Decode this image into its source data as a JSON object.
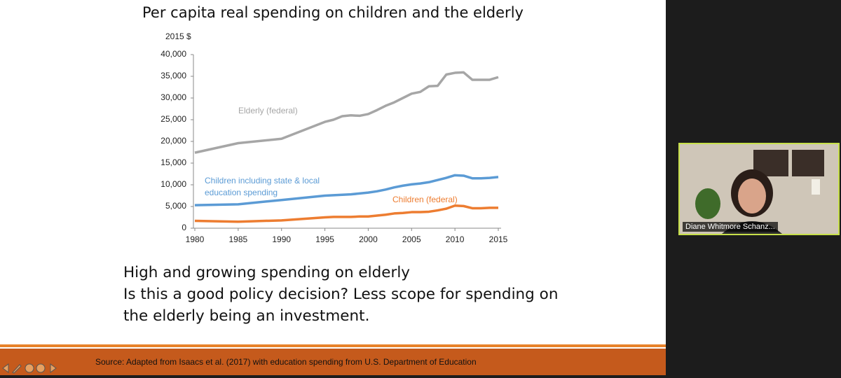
{
  "slide": {
    "title": "Per capita real spending on children and the elderly",
    "body": [
      "High and growing spending on elderly",
      "Is this a good policy decision? Less scope for spending on",
      "the elderly being an investment."
    ],
    "source": "Source: Adapted from Isaacs et al. (2017) with education spending from U.S. Department of Education"
  },
  "chart_data": {
    "type": "line",
    "y_label": "2015 $",
    "x": [
      1980,
      1985,
      1990,
      1995,
      1996,
      1997,
      1998,
      1999,
      2000,
      2001,
      2002,
      2003,
      2004,
      2005,
      2006,
      2007,
      2008,
      2009,
      2010,
      2011,
      2012,
      2013,
      2014,
      2015
    ],
    "series": [
      {
        "name": "Elderly (federal)",
        "color": "#a6a6a6",
        "values": [
          17400,
          19600,
          20600,
          24500,
          25000,
          25800,
          26000,
          25900,
          26300,
          27200,
          28200,
          29000,
          30000,
          31000,
          31400,
          32700,
          32800,
          35400,
          35800,
          35900,
          34200,
          34200,
          34200,
          34800
        ]
      },
      {
        "name": "Children including state & local education spending",
        "color": "#5b9bd5",
        "values": [
          5300,
          5500,
          6500,
          7500,
          7600,
          7700,
          7800,
          8000,
          8200,
          8500,
          8900,
          9400,
          9800,
          10100,
          10300,
          10600,
          11100,
          11600,
          12200,
          12100,
          11500,
          11500,
          11600,
          11800
        ]
      },
      {
        "name": "Children (federal)",
        "color": "#ed7d31",
        "values": [
          1700,
          1500,
          1800,
          2500,
          2600,
          2600,
          2600,
          2700,
          2700,
          2900,
          3100,
          3400,
          3500,
          3700,
          3700,
          3800,
          4100,
          4500,
          5200,
          5100,
          4600,
          4600,
          4700,
          4700
        ]
      }
    ],
    "xlim": [
      1980,
      2015
    ],
    "xticks": [
      1980,
      1985,
      1990,
      1995,
      2000,
      2005,
      2010,
      2015
    ],
    "ylim": [
      0,
      40000
    ],
    "yticks": [
      0,
      {
        "value": 5000,
        "label": "5,000"
      },
      {
        "value": 10000,
        "label": "10,000"
      },
      {
        "value": 15000,
        "label": "15,000"
      },
      {
        "value": 20000,
        "label": "20,000"
      },
      {
        "value": 25000,
        "label": "25,000"
      },
      {
        "value": 30000,
        "label": "30,000"
      },
      {
        "value": 35000,
        "label": "35,000"
      },
      {
        "value": 40000,
        "label": "40,000"
      }
    ]
  },
  "participant": {
    "name": "Diane Whitmore Schanz..."
  }
}
